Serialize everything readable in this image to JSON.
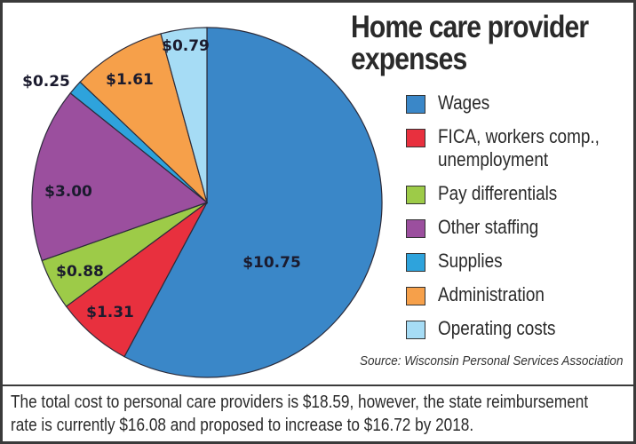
{
  "chart_data": {
    "type": "pie",
    "title": "Home care provider expenses",
    "slices": [
      {
        "name": "Wages",
        "value": 10.75,
        "label": "$10.75",
        "color": "#3a87c8"
      },
      {
        "name": "FICA, workers comp., unemployment",
        "value": 1.31,
        "label": "$1.31",
        "color": "#e8303e"
      },
      {
        "name": "Pay differentials",
        "value": 0.88,
        "label": "$0.88",
        "color": "#9dcb48"
      },
      {
        "name": "Other staffing",
        "value": 3.0,
        "label": "$3.00",
        "color": "#9b4f9e"
      },
      {
        "name": "Supplies",
        "value": 0.25,
        "label": "$0.25",
        "color": "#2ea3dc"
      },
      {
        "name": "Administration",
        "value": 1.61,
        "label": "$1.61",
        "color": "#f6a04a"
      },
      {
        "name": "Operating costs",
        "value": 0.79,
        "label": "$0.79",
        "color": "#a6dcf5"
      }
    ],
    "legend_placement": "right",
    "source": "Source: Wisconsin Personal Services Association"
  },
  "legend": {
    "items": [
      {
        "label1": "Wages"
      },
      {
        "label1": "FICA, workers comp.,",
        "label2": "unemployment"
      },
      {
        "label1": "Pay differentials"
      },
      {
        "label1": "Other staffing"
      },
      {
        "label1": "Supplies"
      },
      {
        "label1": "Administration"
      },
      {
        "label1": "Operating costs"
      }
    ]
  },
  "footer": {
    "line1": "The total cost to personal care providers is $18.59, however, the state reimbursement",
    "line2": "rate is currently $16.08 and proposed to increase to $16.72 by 2018."
  }
}
